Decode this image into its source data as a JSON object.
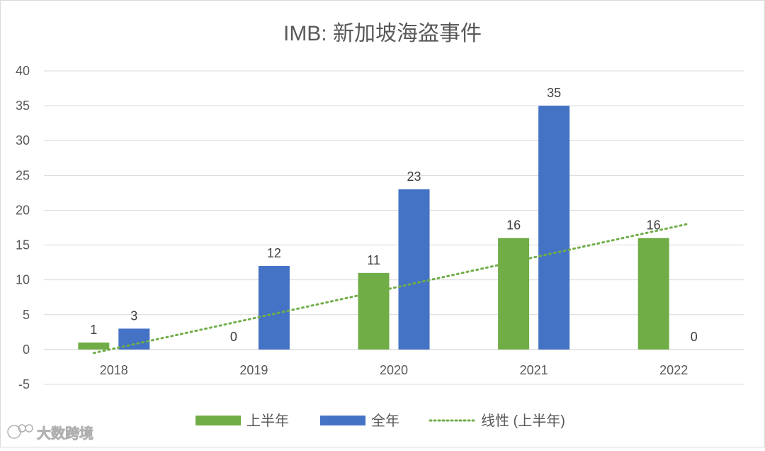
{
  "chart_data": {
    "type": "bar",
    "title": "IMB: 新加坡海盗事件",
    "categories": [
      "2018",
      "2019",
      "2020",
      "2021",
      "2022"
    ],
    "series": [
      {
        "name": "上半年",
        "color": "#70ad47",
        "values": [
          1,
          null,
          11,
          16,
          16
        ],
        "labels": [
          "1",
          "",
          "11",
          "16",
          "16"
        ]
      },
      {
        "name": "全年",
        "color": "#4472c4",
        "values": [
          3,
          12,
          23,
          35,
          0
        ],
        "labels": [
          "3",
          "12",
          "23",
          "35",
          "0"
        ]
      }
    ],
    "trendline": {
      "name": "线性 (上半年)",
      "color": "#70ad47",
      "style": "dotted",
      "start": -0.5,
      "end": 18
    },
    "extra_labels": [
      {
        "category": "2019",
        "text": "0"
      }
    ],
    "y_ticks": [
      -5,
      0,
      5,
      10,
      15,
      20,
      25,
      30,
      35,
      40
    ],
    "y_tick_labels": [
      "-5",
      "0",
      "5",
      "10",
      "15",
      "20",
      "25",
      "30",
      "35",
      "40"
    ],
    "ylim": [
      -5,
      40
    ],
    "grid": true,
    "legend_position": "bottom",
    "xlabel": "",
    "ylabel": ""
  },
  "watermark": {
    "text": "大数跨境"
  }
}
